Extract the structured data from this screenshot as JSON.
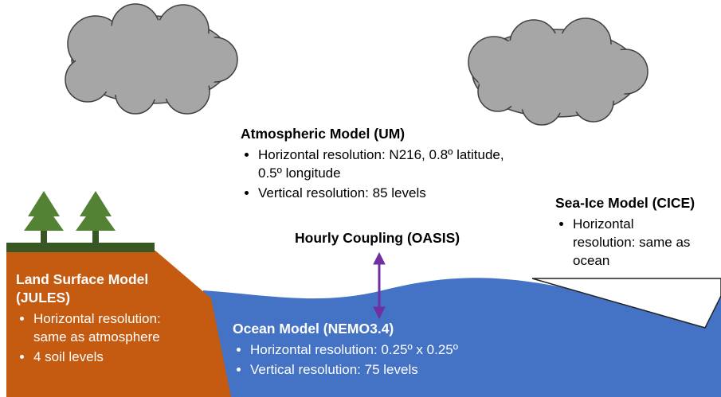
{
  "atmosphere": {
    "title": "Atmospheric Model (UM)",
    "bullets": [
      "Horizontal resolution: N216, 0.8º latitude, 0.5º longitude",
      "Vertical resolution: 85 levels"
    ]
  },
  "coupling": {
    "label": "Hourly Coupling (OASIS)"
  },
  "land": {
    "title": "Land Surface Model (JULES)",
    "bullets": [
      "Horizontal resolution: same as atmosphere",
      "4 soil levels"
    ]
  },
  "ocean": {
    "title": "Ocean Model (NEMO3.4)",
    "bullets": [
      "Horizontal resolution: 0.25º x 0.25º",
      "Vertical resolution: 75 levels"
    ]
  },
  "sea_ice": {
    "title": "Sea-Ice Model (CICE)",
    "bullets": [
      "Horizontal resolution: same as ocean"
    ]
  }
}
